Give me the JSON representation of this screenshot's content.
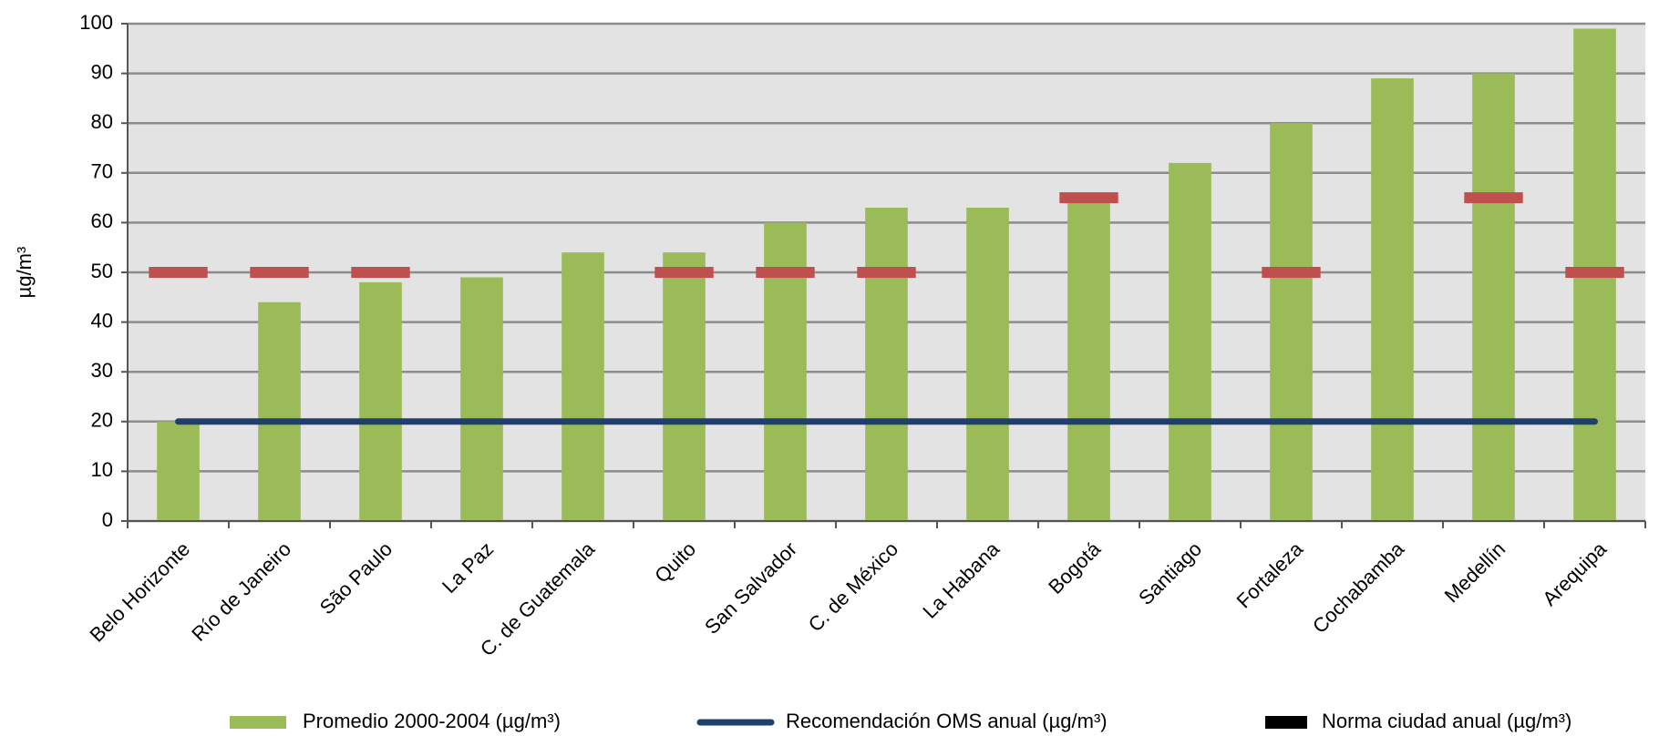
{
  "chart_data": {
    "type": "bar",
    "y_label": "µg/m³",
    "categories": [
      "Belo Horizonte",
      "Río de Janeiro",
      "São Paulo",
      "La Paz",
      "C. de Guatemala",
      "Quito",
      "San Salvador",
      "C. de México",
      "La Habana",
      "Bogotá",
      "Santiago",
      "Fortaleza",
      "Cochabamba",
      "Medellín",
      "Arequipa"
    ],
    "series": [
      {
        "name": "Promedio 2000-2004 (µg/m³)",
        "kind": "bar",
        "color": "#9bbb59",
        "values": [
          20,
          44,
          48,
          49,
          54,
          54,
          60,
          63,
          63,
          64,
          72,
          80,
          89,
          90,
          99
        ]
      },
      {
        "name": "Recomendación OMS anual (µg/m³)",
        "kind": "line",
        "color": "#1f3f6e",
        "values": [
          20,
          20,
          20,
          20,
          20,
          20,
          20,
          20,
          20,
          20,
          20,
          20,
          20,
          20,
          20
        ]
      },
      {
        "name": "Norma ciudad anual (µg/m³)",
        "kind": "dash",
        "color": "#c0504d",
        "legend_color": "#000000",
        "values": [
          50,
          50,
          50,
          null,
          null,
          50,
          50,
          50,
          null,
          65,
          null,
          50,
          null,
          65,
          50
        ]
      }
    ],
    "ylim": [
      0,
      100
    ],
    "yticks": [
      0,
      10,
      20,
      30,
      40,
      50,
      60,
      70,
      80,
      90,
      100
    ],
    "grid": true
  }
}
